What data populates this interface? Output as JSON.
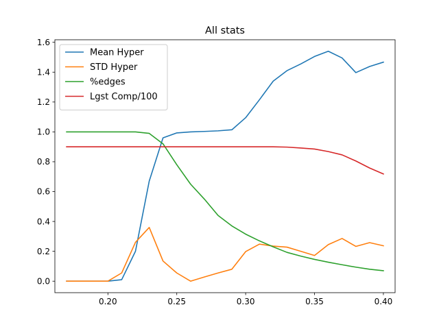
{
  "chart_data": {
    "type": "line",
    "title": "All stats",
    "xlabel": "",
    "ylabel": "",
    "xlim": [
      0.1615,
      0.4085
    ],
    "ylim": [
      -0.077,
      1.617
    ],
    "xticks": [
      0.2,
      0.25,
      0.3,
      0.35,
      0.4
    ],
    "xtick_labels": [
      "0.20",
      "0.25",
      "0.30",
      "0.35",
      "0.40"
    ],
    "yticks": [
      0.0,
      0.2,
      0.4,
      0.6,
      0.8,
      1.0,
      1.2,
      1.4,
      1.6
    ],
    "ytick_labels": [
      "0.0",
      "0.2",
      "0.4",
      "0.6",
      "0.8",
      "1.0",
      "1.2",
      "1.4",
      "1.6"
    ],
    "grid": false,
    "legend_position": "top-left",
    "x": [
      0.17,
      0.18,
      0.19,
      0.2,
      0.21,
      0.22,
      0.23,
      0.24,
      0.25,
      0.26,
      0.27,
      0.28,
      0.29,
      0.3,
      0.31,
      0.32,
      0.33,
      0.34,
      0.35,
      0.36,
      0.37,
      0.38,
      0.39,
      0.4
    ],
    "series": [
      {
        "name": "Mean Hyper",
        "color": "#1f77b4",
        "values": [
          0.0,
          0.0,
          0.0,
          0.0,
          0.01,
          0.2,
          0.67,
          0.96,
          0.993,
          1.0,
          1.003,
          1.007,
          1.014,
          1.095,
          1.215,
          1.34,
          1.41,
          1.455,
          1.505,
          1.54,
          1.495,
          1.397,
          1.438,
          1.467
        ]
      },
      {
        "name": "STD Hyper",
        "color": "#ff7f0e",
        "values": [
          0.0,
          0.0,
          0.0,
          0.0,
          0.055,
          0.26,
          0.36,
          0.135,
          0.055,
          0.0,
          0.028,
          0.055,
          0.08,
          0.198,
          0.248,
          0.235,
          0.228,
          0.2,
          0.172,
          0.245,
          0.286,
          0.233,
          0.258,
          0.237
        ]
      },
      {
        "name": "%edges",
        "color": "#2ca02c",
        "values": [
          1.0,
          1.0,
          1.0,
          1.0,
          1.0,
          1.0,
          0.99,
          0.92,
          0.78,
          0.65,
          0.55,
          0.44,
          0.37,
          0.315,
          0.27,
          0.23,
          0.193,
          0.168,
          0.146,
          0.127,
          0.11,
          0.094,
          0.08,
          0.07
        ]
      },
      {
        "name": "Lgst Comp/100",
        "color": "#d62728",
        "values": [
          0.9,
          0.9,
          0.9,
          0.9,
          0.9,
          0.9,
          0.9,
          0.9,
          0.9,
          0.9,
          0.9,
          0.9,
          0.9,
          0.9,
          0.9,
          0.9,
          0.898,
          0.892,
          0.885,
          0.868,
          0.846,
          0.805,
          0.758,
          0.718
        ]
      }
    ]
  }
}
